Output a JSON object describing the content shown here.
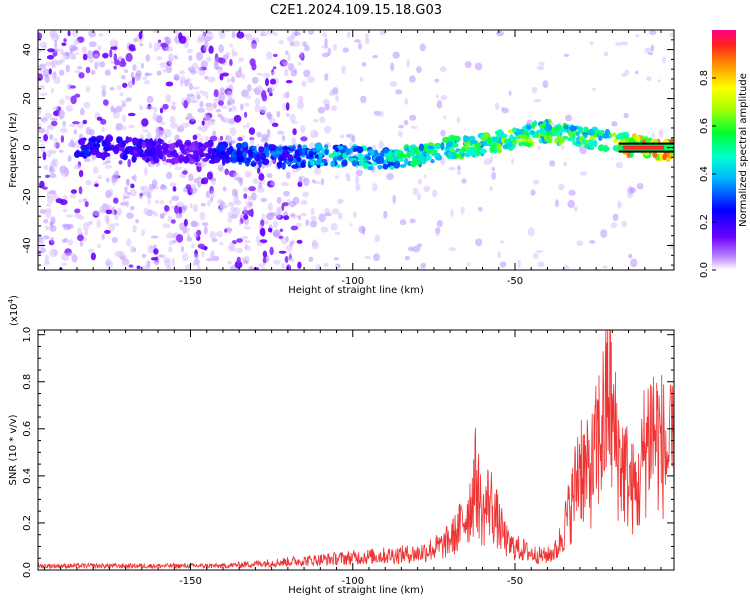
{
  "figure_title": "C2E1.2024.109.15.18.G03",
  "colors": {
    "snr_line": "#ee3333",
    "flat_band": "#ff2a2a"
  },
  "chart_data": [
    {
      "type": "heatmap",
      "title": "",
      "xlabel": "Height of straight line (km)",
      "ylabel": "Frequency (Hz)",
      "xlim": [
        -197,
        -1
      ],
      "ylim": [
        -50,
        48
      ],
      "x_ticks": [
        -150,
        -100,
        -50
      ],
      "y_ticks": [
        -40,
        -20,
        0,
        20,
        40
      ],
      "colorbar": {
        "label": "Normalized spectral amplitude",
        "range": [
          0.0,
          1.0
        ],
        "ticks": [
          0.0,
          0.2,
          0.4,
          0.6,
          0.8
        ],
        "colormap": [
          "#ffffff",
          "#6a00ff",
          "#0000ff",
          "#00e0ff",
          "#00ff40",
          "#ffff00",
          "#ff8000",
          "#ff0060"
        ]
      },
      "ridge": {
        "x": [
          -197,
          -185,
          -175,
          -165,
          -150,
          -140,
          -130,
          -120,
          -110,
          -100,
          -90,
          -80,
          -70,
          -60,
          -50,
          -40,
          -30,
          -20,
          -10,
          -1
        ],
        "y": [
          0,
          1,
          0,
          -1,
          -2,
          -2,
          -3,
          -4,
          -3,
          -4,
          -5,
          -3,
          0,
          1,
          4,
          7,
          4,
          2,
          0,
          -1
        ],
        "amplitude": [
          0.15,
          0.25,
          0.2,
          0.2,
          0.15,
          0.25,
          0.3,
          0.3,
          0.4,
          0.45,
          0.45,
          0.5,
          0.55,
          0.55,
          0.6,
          0.55,
          0.55,
          0.6,
          0.9,
          0.85
        ]
      },
      "flat_segment": {
        "x": [
          -18,
          -1
        ],
        "y": 0,
        "amplitude": 0.95
      }
    },
    {
      "type": "line",
      "title": "",
      "xlabel": "Height of straight line (km)",
      "ylabel": "SNR (10 * v/v)",
      "y_multiplier": "(x10",
      "y_multiplier_exp": "4",
      "y_multiplier_close": ")",
      "xlim": [
        -197,
        -1
      ],
      "ylim": [
        0,
        1.02
      ],
      "x_ticks": [
        -150,
        -100,
        -50
      ],
      "y_ticks": [
        0.0,
        0.2,
        0.4,
        0.6,
        0.8,
        1.0
      ],
      "series": [
        {
          "x": [
            -197,
            -180,
            -160,
            -140,
            -130,
            -120,
            -110,
            -100,
            -90,
            -80,
            -72,
            -68,
            -64,
            -62,
            -60,
            -58,
            -55,
            -52,
            -48,
            -45,
            -42,
            -40,
            -37,
            -35,
            -32,
            -30,
            -28,
            -26,
            -24,
            -22,
            -21,
            -20,
            -18,
            -16,
            -14,
            -12,
            -10,
            -8,
            -5,
            -3,
            -1
          ],
          "y": [
            0.02,
            0.02,
            0.02,
            0.02,
            0.03,
            0.04,
            0.05,
            0.06,
            0.07,
            0.08,
            0.12,
            0.18,
            0.3,
            0.45,
            0.25,
            0.35,
            0.22,
            0.12,
            0.1,
            0.08,
            0.07,
            0.07,
            0.1,
            0.2,
            0.35,
            0.55,
            0.45,
            0.5,
            0.65,
            0.75,
            0.95,
            0.7,
            0.55,
            0.48,
            0.4,
            0.38,
            0.6,
            0.7,
            0.62,
            0.55,
            0.58
          ]
        }
      ]
    }
  ]
}
